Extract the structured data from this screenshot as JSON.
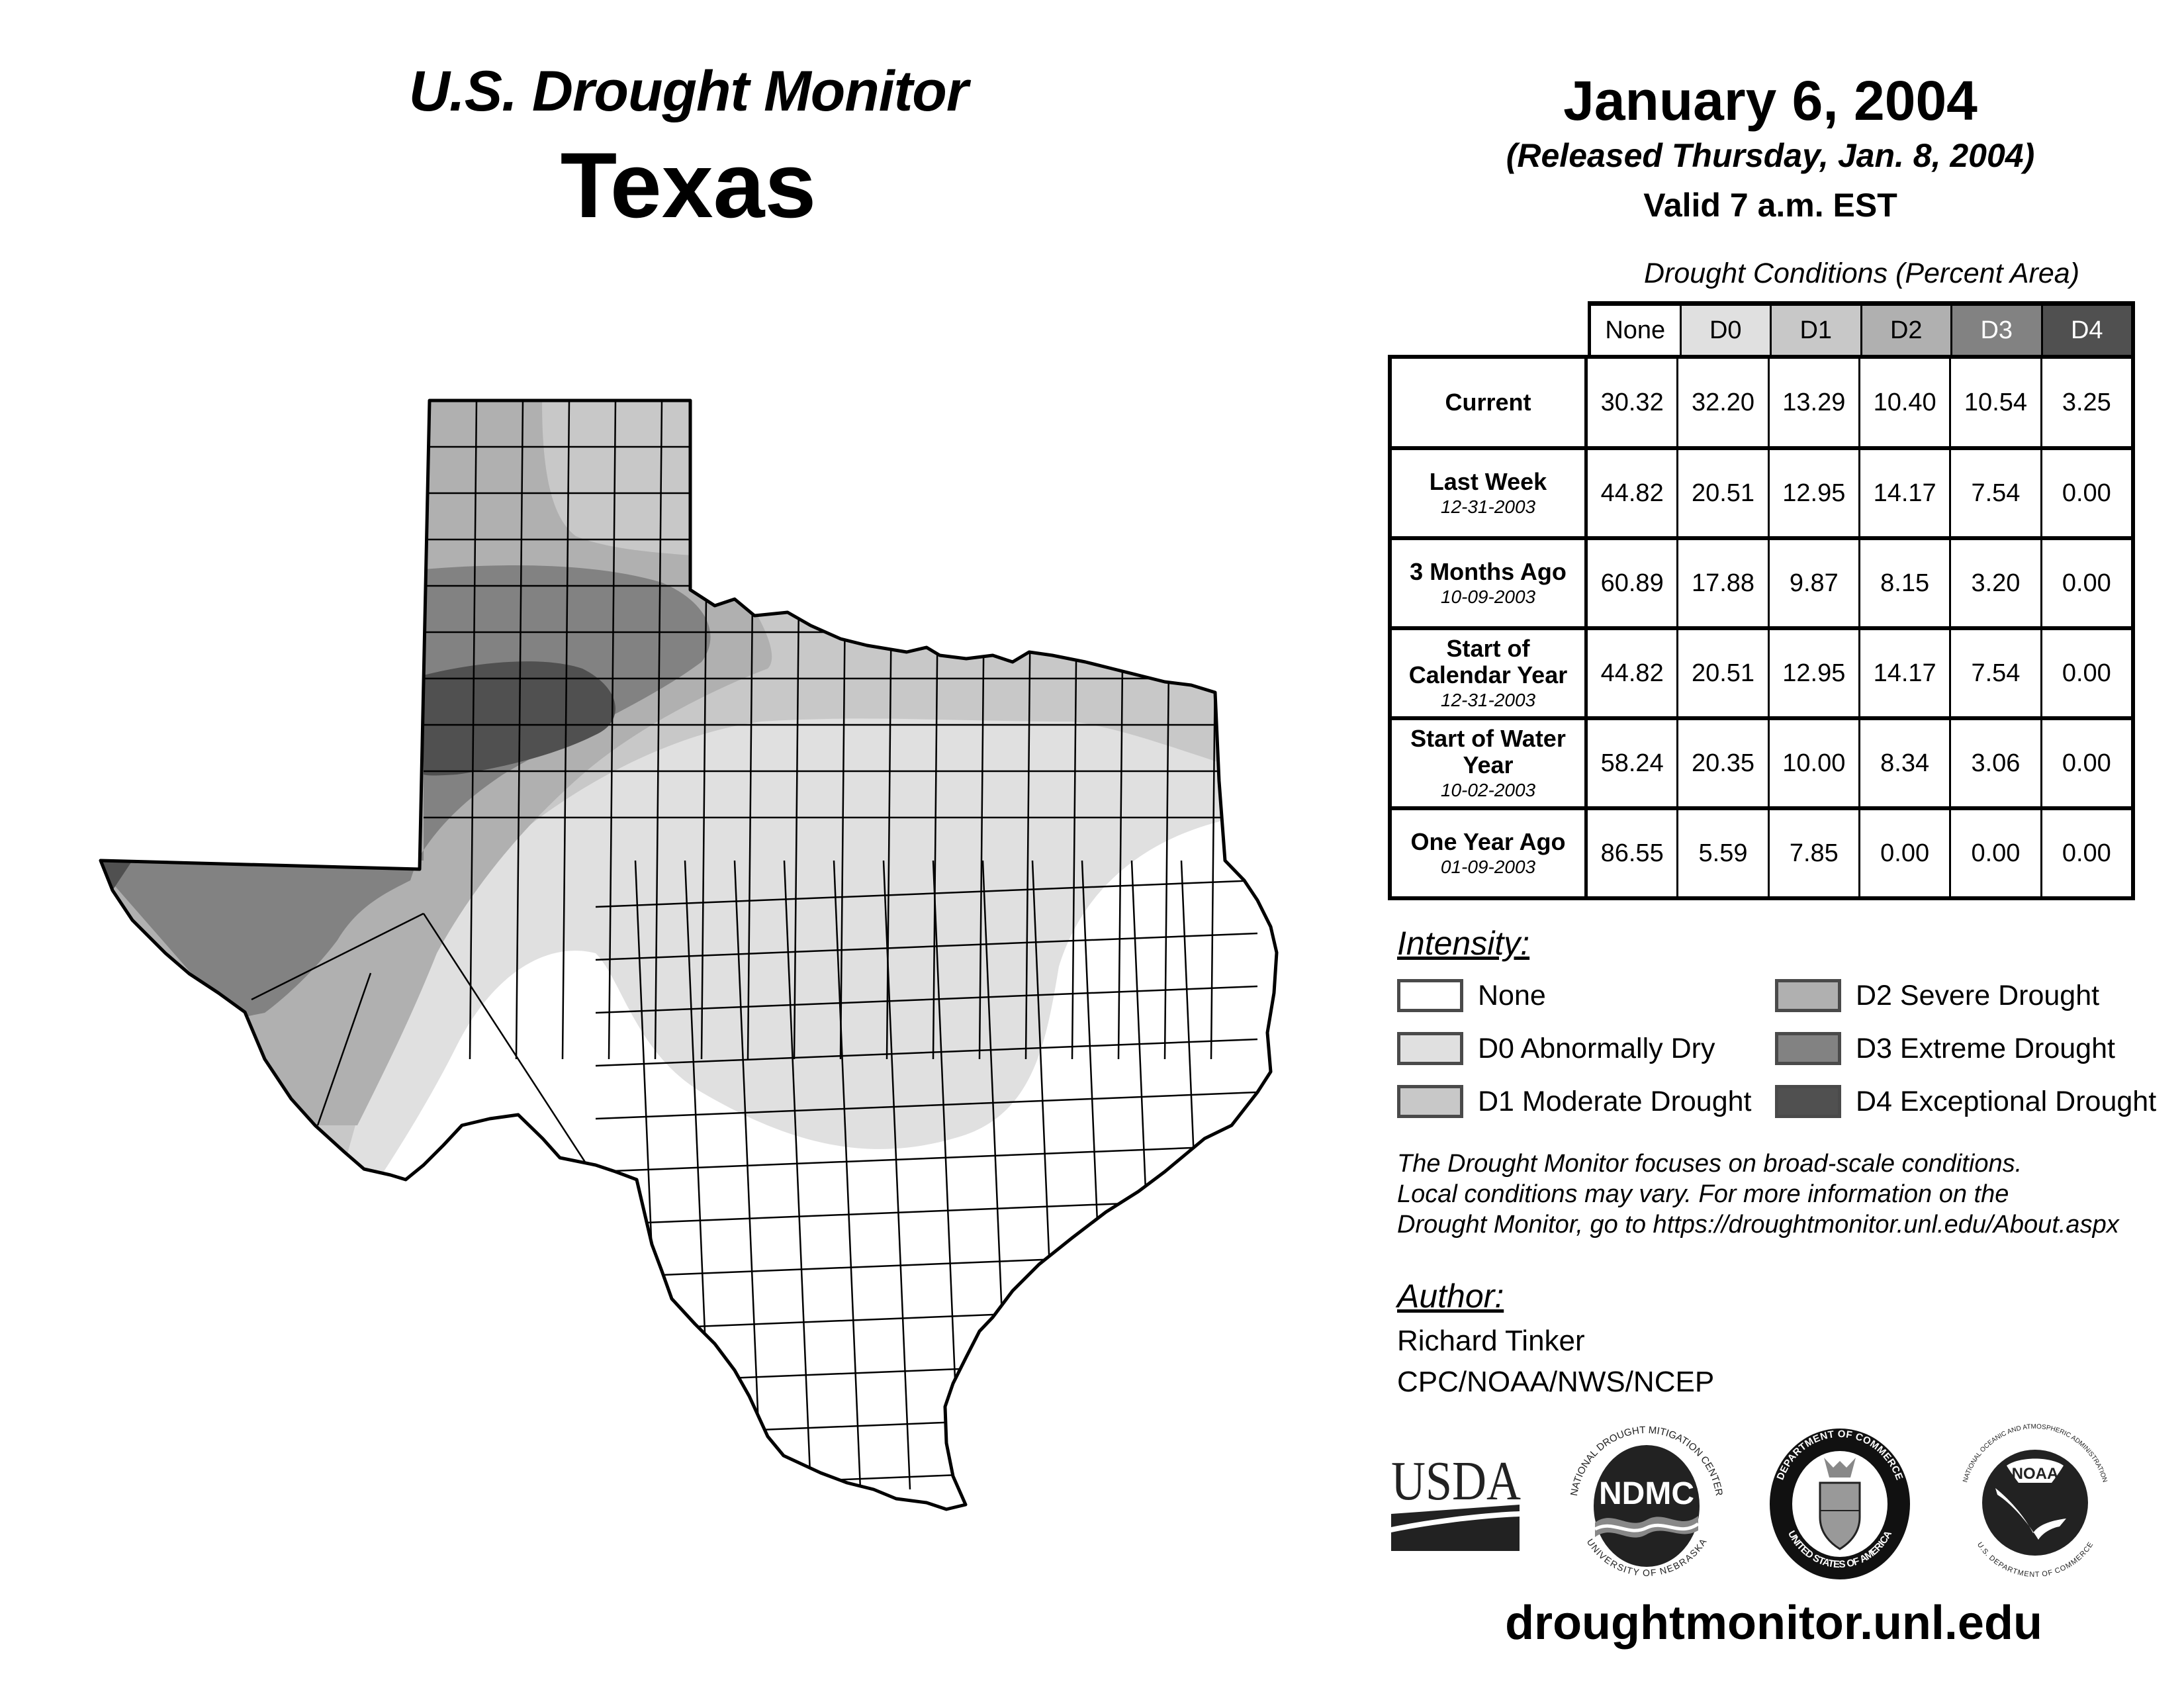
{
  "header": {
    "title": "U.S. Drought Monitor",
    "region": "Texas",
    "date": "January 6, 2004",
    "released": "(Released Thursday, Jan. 8, 2004)",
    "valid": "Valid 7 a.m. EST"
  },
  "table": {
    "caption": "Drought Conditions (Percent Area)",
    "columns": [
      {
        "label": "None",
        "color": "#ffffff",
        "text_color": "#000000"
      },
      {
        "label": "D0",
        "color": "#e0e0e0",
        "text_color": "#000000"
      },
      {
        "label": "D1",
        "color": "#c8c8c8",
        "text_color": "#000000"
      },
      {
        "label": "D2",
        "color": "#b0b0b0",
        "text_color": "#000000"
      },
      {
        "label": "D3",
        "color": "#828282",
        "text_color": "#ffffff"
      },
      {
        "label": "D4",
        "color": "#505050",
        "text_color": "#ffffff"
      }
    ],
    "rows": [
      {
        "label": "Current",
        "date": "",
        "values": [
          "30.32",
          "32.20",
          "13.29",
          "10.40",
          "10.54",
          "3.25"
        ]
      },
      {
        "label": "Last Week",
        "date": "12-31-2003",
        "values": [
          "44.82",
          "20.51",
          "12.95",
          "14.17",
          "7.54",
          "0.00"
        ]
      },
      {
        "label": "3 Months Ago",
        "date": "10-09-2003",
        "values": [
          "60.89",
          "17.88",
          "9.87",
          "8.15",
          "3.20",
          "0.00"
        ]
      },
      {
        "label": "Start of Calendar Year",
        "date": "12-31-2003",
        "values": [
          "44.82",
          "20.51",
          "12.95",
          "14.17",
          "7.54",
          "0.00"
        ]
      },
      {
        "label": "Start of Water Year",
        "date": "10-02-2003",
        "values": [
          "58.24",
          "20.35",
          "10.00",
          "8.34",
          "3.06",
          "0.00"
        ]
      },
      {
        "label": "One Year Ago",
        "date": "01-09-2003",
        "values": [
          "86.55",
          "5.59",
          "7.85",
          "0.00",
          "0.00",
          "0.00"
        ]
      }
    ]
  },
  "legend": {
    "title": "Intensity:",
    "items": [
      {
        "label": "None",
        "color": "#ffffff"
      },
      {
        "label": "D0 Abnormally Dry",
        "color": "#e0e0e0"
      },
      {
        "label": "D1 Moderate Drought",
        "color": "#c8c8c8"
      },
      {
        "label": "D2 Severe Drought",
        "color": "#b0b0b0"
      },
      {
        "label": "D3 Extreme Drought",
        "color": "#828282"
      },
      {
        "label": "D4 Exceptional Drought",
        "color": "#505050"
      }
    ]
  },
  "note": {
    "lines": [
      "The Drought Monitor focuses on broad-scale conditions.",
      "Local conditions may vary. For more information on the",
      "Drought Monitor, go to https://droughtmonitor.unl.edu/About.aspx"
    ]
  },
  "author": {
    "title": "Author:",
    "name": "Richard Tinker",
    "org": "CPC/NOAA/NWS/NCEP"
  },
  "logos": {
    "usda": "USDA",
    "ndmc": "NDMC",
    "ndmc_top": "NATIONAL DROUGHT MITIGATION CENTER",
    "ndmc_bottom": "UNIVERSITY OF NEBRASKA",
    "doc_top": "DEPARTMENT OF COMMERCE",
    "doc_bottom": "UNITED STATES OF AMERICA",
    "noaa": "NOAA",
    "noaa_top": "NATIONAL OCEANIC AND ATMOSPHERIC ADMINISTRATION",
    "noaa_bottom": "U.S. DEPARTMENT OF COMMERCE"
  },
  "footer": {
    "url": "droughtmonitor.unl.edu"
  },
  "map": {
    "state": "Texas",
    "category_colors": {
      "None": "#ffffff",
      "D0": "#e0e0e0",
      "D1": "#c8c8c8",
      "D2": "#b0b0b0",
      "D3": "#828282",
      "D4": "#505050"
    }
  }
}
